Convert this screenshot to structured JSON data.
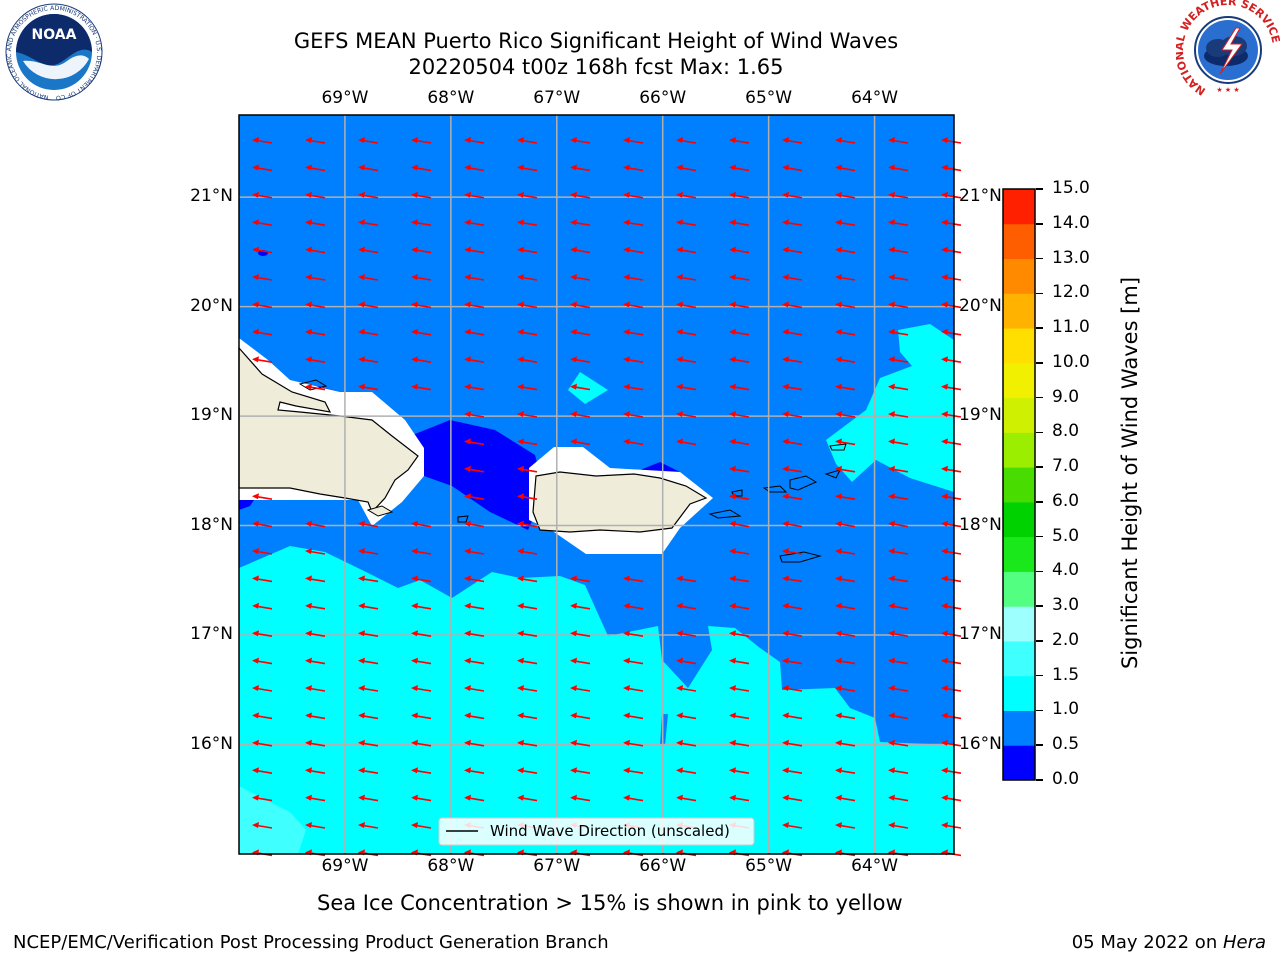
{
  "header": {
    "title_line1": "GEFS MEAN Puerto Rico Significant Height of Wind Waves",
    "title_line2": "20220504 t00z 168h fcst   Max: 1.65"
  },
  "logos": {
    "left": "NOAA",
    "left_ring": "NATIONAL OCEANIC AND ATMOSPHERIC ADMINISTRATION · U.S. DEPARTMENT OF COMMERCE",
    "right_ring": "NATIONAL WEATHER SERVICE"
  },
  "map": {
    "lon_labels": [
      "69°W",
      "68°W",
      "67°W",
      "66°W",
      "65°W",
      "64°W"
    ],
    "lat_labels": [
      "21°N",
      "20°N",
      "19°N",
      "18°N",
      "17°N",
      "16°N"
    ],
    "lon_range": [
      -70.0,
      -63.25
    ],
    "lat_range": [
      15.0,
      21.75
    ],
    "ocean_color": "#0080ff",
    "land_color": "#efedd9",
    "arrow_color": "#ff0000",
    "arrow_direction": "westward, slightly north of west",
    "legend_label": "Wind Wave Direction (unscaled)"
  },
  "colorbar": {
    "title": "Significant Height of Wind Waves [m]",
    "ticks": [
      "0.0",
      "0.5",
      "1.0",
      "1.5",
      "2.0",
      "3.0",
      "4.0",
      "5.0",
      "6.0",
      "7.0",
      "8.0",
      "9.0",
      "10.0",
      "11.0",
      "12.0",
      "13.0",
      "14.0",
      "15.0"
    ],
    "colors": [
      "#0000ff",
      "#0080ff",
      "#00ffff",
      "#40ffff",
      "#9effff",
      "#52ff80",
      "#1ae81a",
      "#00d200",
      "#48dc00",
      "#9cee00",
      "#cff000",
      "#f0f000",
      "#ffdf00",
      "#ffb300",
      "#ff8a00",
      "#ff5e00",
      "#ff2000"
    ]
  },
  "annotation": "Sea Ice Concentration > 15% is shown in pink to yellow",
  "footer": {
    "left": "NCEP/EMC/Verification Post Processing Product Generation Branch",
    "right_prefix": "05 May 2022 on ",
    "right_italic": "Hera"
  }
}
